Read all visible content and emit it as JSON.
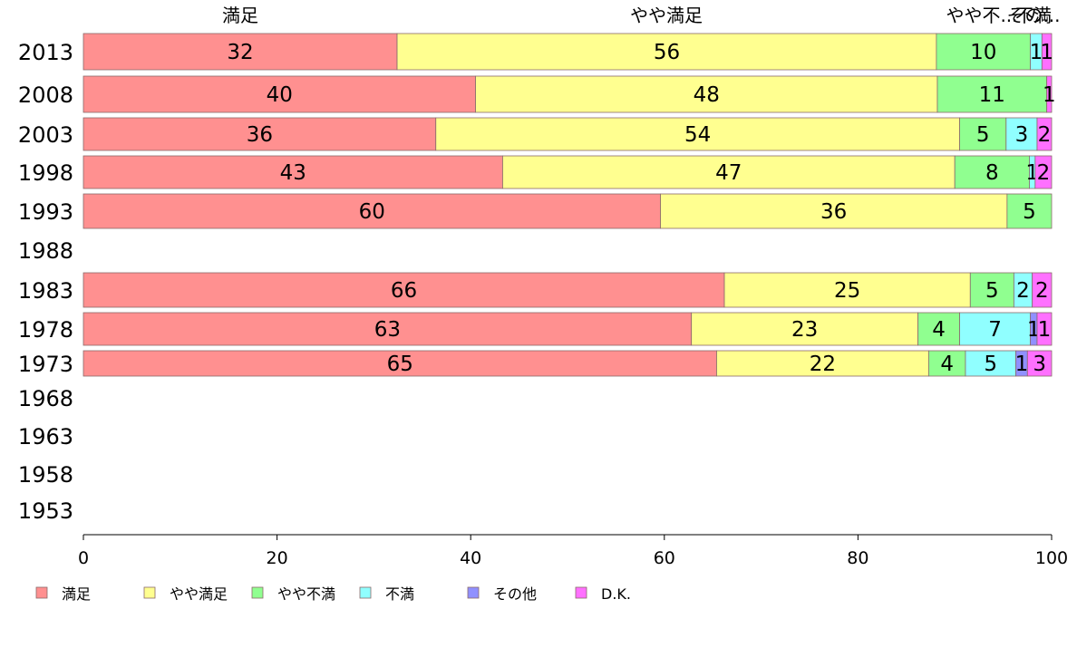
{
  "chart_data": {
    "type": "bar",
    "orientation": "horizontal",
    "stacked": true,
    "categories": [
      "2013",
      "2008",
      "2003",
      "1998",
      "1993",
      "1988",
      "1983",
      "1978",
      "1973",
      "1968",
      "1963",
      "1958",
      "1953"
    ],
    "series": [
      {
        "name": "満足",
        "color": "#ff9090",
        "values": [
          32.4,
          40.5,
          36.4,
          43.3,
          59.6,
          null,
          66.2,
          62.8,
          65.4,
          null,
          null,
          null,
          null
        ]
      },
      {
        "name": "やや満足",
        "color": "#ffff90",
        "values": [
          55.7,
          47.7,
          54.1,
          46.7,
          35.8,
          null,
          25.4,
          23.4,
          21.9,
          null,
          null,
          null,
          null
        ]
      },
      {
        "name": "やや不満",
        "color": "#90ff90",
        "values": [
          9.7,
          11.3,
          4.8,
          7.7,
          4.6,
          null,
          4.5,
          4.3,
          3.8,
          null,
          null,
          null,
          null
        ]
      },
      {
        "name": "不満",
        "color": "#90ffff",
        "values": [
          1.2,
          0.0,
          3.2,
          0.6,
          0.0,
          null,
          1.9,
          7.3,
          5.2,
          null,
          null,
          null,
          null
        ]
      },
      {
        "name": "その他",
        "color": "#9090ff",
        "values": [
          0.0,
          0.0,
          0.0,
          0.0,
          0.0,
          null,
          0.0,
          0.7,
          1.2,
          null,
          null,
          null,
          null
        ]
      },
      {
        "name": "D.K.",
        "color": "#ff70ff",
        "values": [
          1.0,
          0.5,
          1.5,
          1.7,
          0.0,
          null,
          2.0,
          1.5,
          2.5,
          null,
          null,
          null,
          null
        ]
      }
    ],
    "data_labels": [
      [
        "32",
        "56",
        "10",
        "1",
        "",
        "1"
      ],
      [
        "40",
        "48",
        "11",
        "",
        "",
        "1"
      ],
      [
        "36",
        "54",
        "5",
        "3",
        "",
        "2"
      ],
      [
        "43",
        "47",
        "8",
        "1",
        "",
        "2"
      ],
      [
        "60",
        "36",
        "5",
        "",
        "",
        ""
      ],
      [
        "",
        "",
        "",
        "",
        "",
        ""
      ],
      [
        "66",
        "25",
        "5",
        "2",
        "",
        "2"
      ],
      [
        "63",
        "23",
        "4",
        "7",
        "1",
        "1"
      ],
      [
        "65",
        "22",
        "4",
        "5",
        "1",
        "3"
      ],
      [
        "",
        "",
        "",
        "",
        "",
        ""
      ],
      [
        "",
        "",
        "",
        "",
        "",
        ""
      ],
      [
        "",
        "",
        "",
        "",
        "",
        ""
      ],
      [
        "",
        "",
        "",
        "",
        "",
        ""
      ]
    ],
    "top_labels": [
      "満足",
      "やや満足",
      "やや不...",
      "不満",
      "その..."
    ],
    "xlim": [
      0,
      100
    ],
    "xticks": [
      "0",
      "20",
      "40",
      "60",
      "80",
      "100"
    ],
    "grid": false,
    "legend_position": "bottom"
  }
}
